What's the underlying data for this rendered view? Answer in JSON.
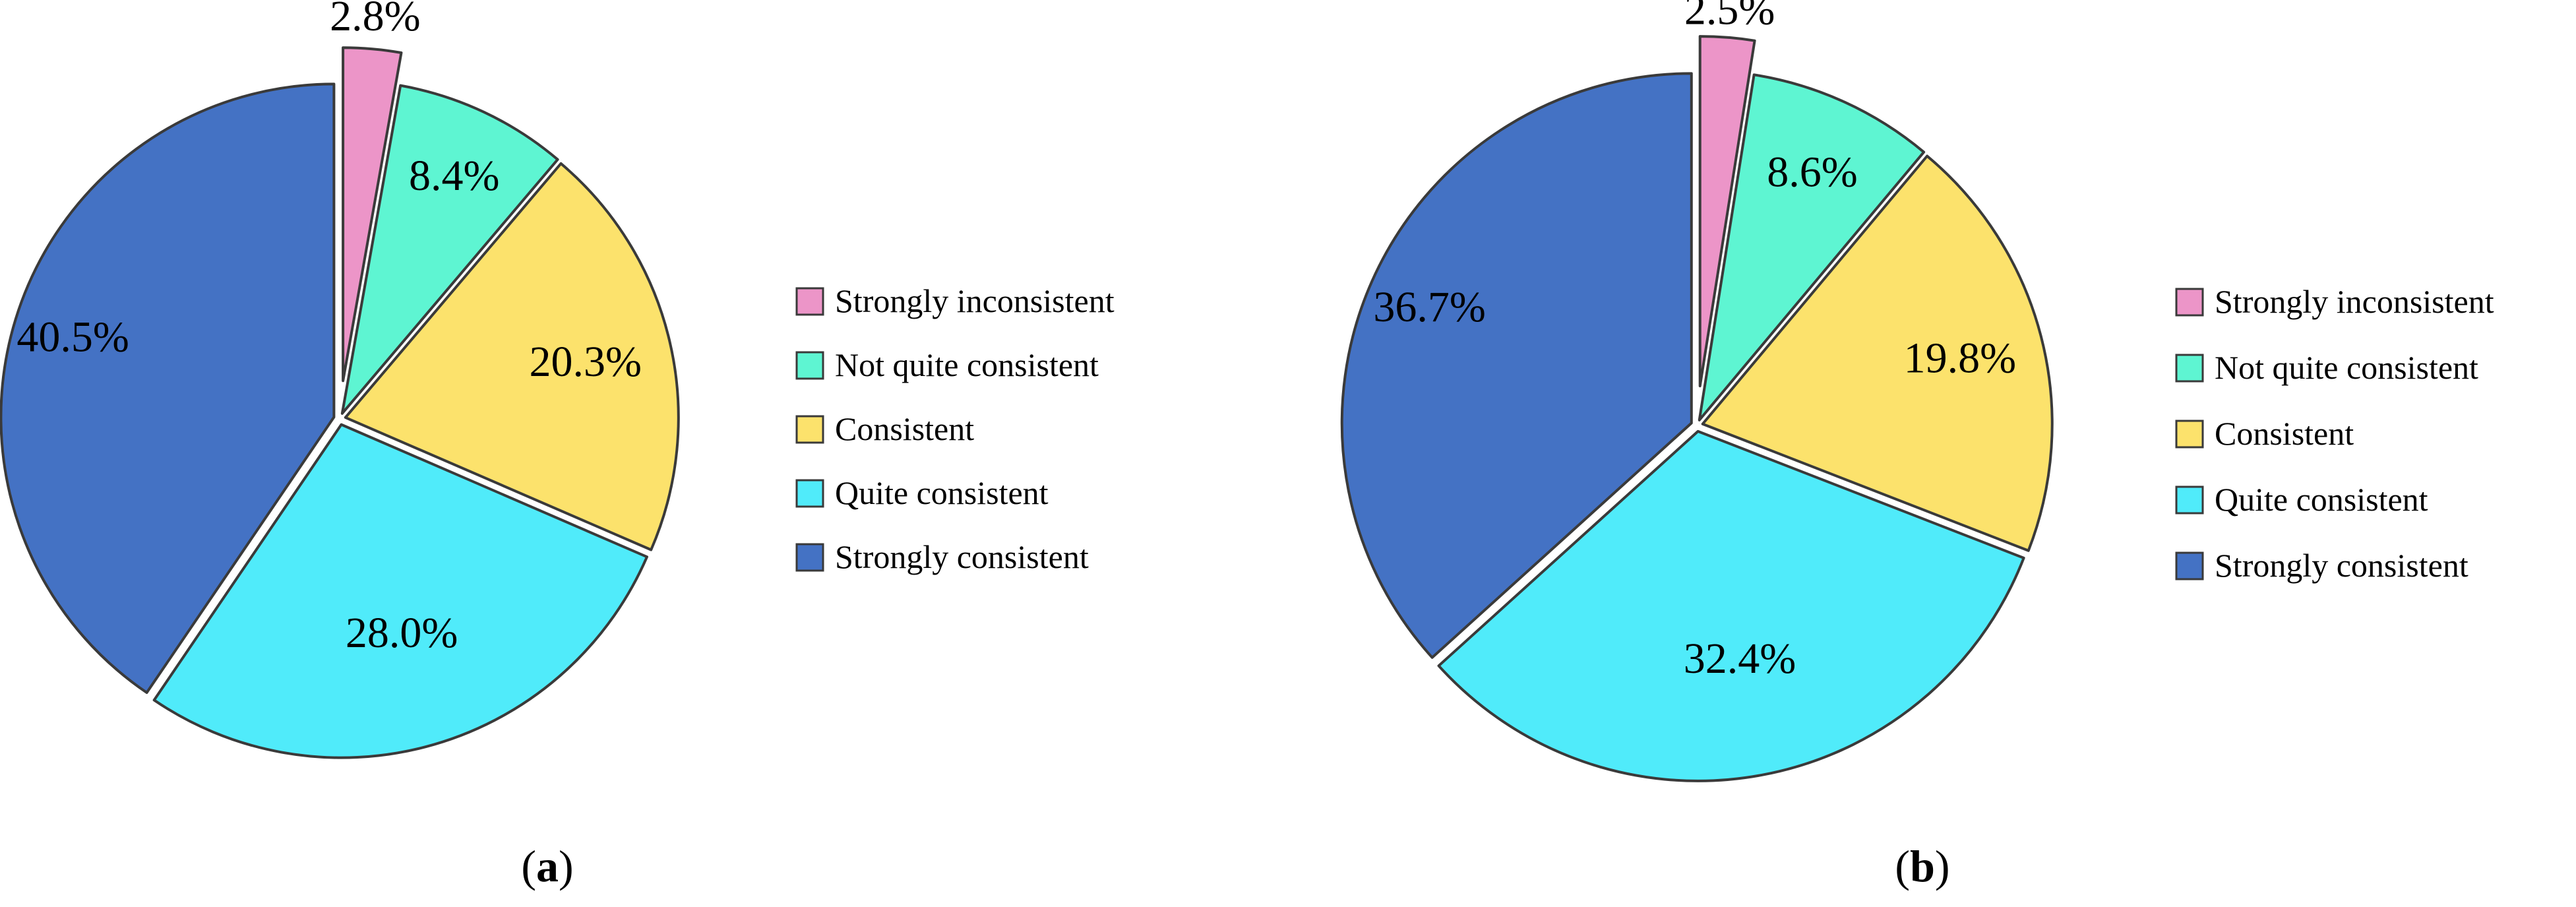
{
  "chart_data": [
    {
      "type": "pie",
      "panel_label": "a",
      "categories": [
        "Strongly inconsistent",
        "Not quite consistent",
        "Consistent",
        "Quite consistent",
        "Strongly consistent"
      ],
      "values": [
        2.8,
        8.4,
        20.3,
        28.0,
        40.5
      ],
      "value_labels": [
        "2.8%",
        "8.4%",
        "20.3%",
        "28.0%",
        "40.5%"
      ],
      "exploded": "Strongly inconsistent",
      "legend_position": "right"
    },
    {
      "type": "pie",
      "panel_label": "b",
      "categories": [
        "Strongly inconsistent",
        "Not quite consistent",
        "Consistent",
        "Quite consistent",
        "Strongly consistent"
      ],
      "values": [
        2.5,
        8.6,
        19.8,
        32.4,
        36.7
      ],
      "value_labels": [
        "2.5%",
        "8.6%",
        "19.8%",
        "32.4%",
        "36.7%"
      ],
      "exploded": "Strongly inconsistent",
      "legend_position": "right"
    }
  ],
  "colors": {
    "Strongly inconsistent": "#ec95c8",
    "Not quite consistent": "#5ef5d2",
    "Consistent": "#fce26c",
    "Quite consistent": "#50ebfa",
    "Strongly consistent": "#4472c4",
    "edge": "#3a3a3a"
  }
}
